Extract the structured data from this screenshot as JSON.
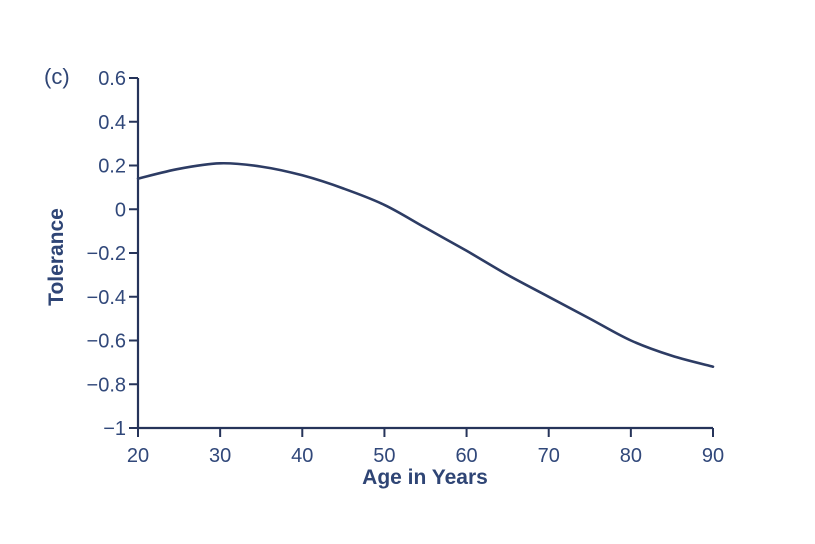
{
  "figure": {
    "panel_label": "(c)",
    "background": "#ffffff"
  },
  "chart_data": {
    "type": "line",
    "title": "",
    "xlabel": "Age in Years",
    "ylabel": "Tolerance",
    "x": [
      20,
      25,
      30,
      35,
      40,
      45,
      50,
      55,
      60,
      65,
      70,
      75,
      80,
      85,
      90
    ],
    "series": [
      {
        "name": "Tolerance",
        "values": [
          0.14,
          0.185,
          0.21,
          0.195,
          0.155,
          0.095,
          0.02,
          -0.085,
          -0.19,
          -0.3,
          -0.4,
          -0.5,
          -0.6,
          -0.67,
          -0.72
        ]
      }
    ],
    "xlim": [
      20,
      90
    ],
    "ylim": [
      -1,
      0.6
    ],
    "xticks": {
      "values": [
        20,
        30,
        40,
        50,
        60,
        70,
        80,
        90
      ],
      "labels": [
        "20",
        "30",
        "40",
        "50",
        "60",
        "70",
        "80",
        "90"
      ]
    },
    "yticks": {
      "values": [
        0.6,
        0.4,
        0.2,
        0,
        -0.2,
        -0.4,
        -0.6,
        -0.8,
        -1
      ],
      "labels": [
        "0.6",
        "0.4",
        "0.2",
        "0",
        "−0.2",
        "−0.4",
        "−0.6",
        "−0.8",
        "−1"
      ]
    },
    "grid": false,
    "legend": "none",
    "colors": {
      "line": "#2d3c64",
      "axis": "#26345a",
      "tick_text": "#31487a",
      "label_text": "#2f4575"
    }
  }
}
